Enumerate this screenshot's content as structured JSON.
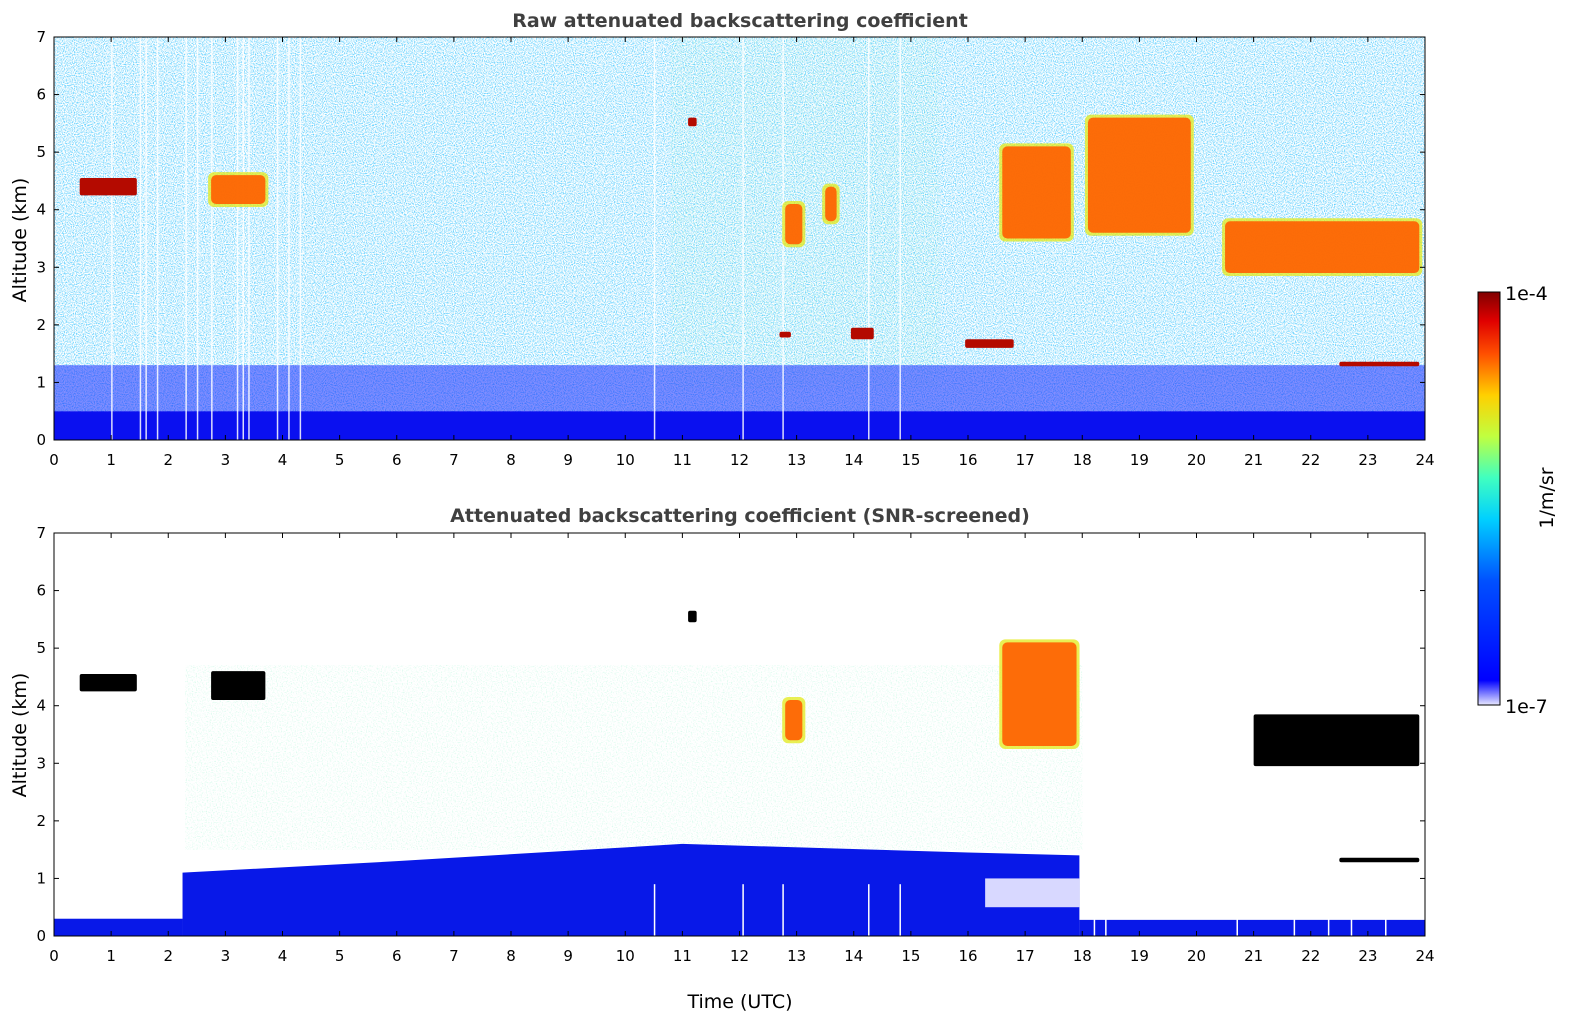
{
  "chart_data": [
    {
      "type": "heatmap",
      "title": "Raw attenuated backscattering coefficient",
      "xlabel": "",
      "ylabel": "Altitude (km)",
      "xlim": [
        0,
        24
      ],
      "ylim": [
        0,
        7
      ],
      "xticks": [
        "0",
        "1",
        "2",
        "3",
        "4",
        "5",
        "6",
        "7",
        "8",
        "9",
        "10",
        "11",
        "12",
        "13",
        "14",
        "15",
        "16",
        "17",
        "18",
        "19",
        "20",
        "21",
        "22",
        "23",
        "24"
      ],
      "yticks": [
        "0",
        "1",
        "2",
        "3",
        "4",
        "5",
        "6",
        "7"
      ],
      "features": [
        {
          "kind": "cloud",
          "t0": 0.45,
          "t1": 1.45,
          "alt0": 4.25,
          "alt1": 4.55
        },
        {
          "kind": "cloud",
          "t0": 2.75,
          "t1": 3.7,
          "alt0": 4.1,
          "alt1": 4.6
        },
        {
          "kind": "cloud",
          "t0": 11.1,
          "t1": 11.25,
          "alt0": 5.45,
          "alt1": 5.6
        },
        {
          "kind": "cloud",
          "t0": 12.8,
          "t1": 13.1,
          "alt0": 3.4,
          "alt1": 4.1
        },
        {
          "kind": "cloud",
          "t0": 13.5,
          "t1": 13.7,
          "alt0": 3.8,
          "alt1": 4.4
        },
        {
          "kind": "cloud",
          "t0": 16.6,
          "t1": 17.8,
          "alt0": 3.5,
          "alt1": 5.1
        },
        {
          "kind": "cloud",
          "t0": 18.1,
          "t1": 19.9,
          "alt0": 3.6,
          "alt1": 5.6
        },
        {
          "kind": "cloud",
          "t0": 20.5,
          "t1": 23.9,
          "alt0": 2.9,
          "alt1": 3.8
        },
        {
          "kind": "cloud",
          "t0": 12.7,
          "t1": 12.9,
          "alt0": 1.78,
          "alt1": 1.88
        },
        {
          "kind": "cloud",
          "t0": 13.95,
          "t1": 14.35,
          "alt0": 1.75,
          "alt1": 1.95
        },
        {
          "kind": "cloud",
          "t0": 15.95,
          "t1": 16.8,
          "alt0": 1.6,
          "alt1": 1.75
        },
        {
          "kind": "cloud",
          "t0": 22.5,
          "t1": 23.9,
          "alt0": 1.28,
          "alt1": 1.36
        }
      ]
    },
    {
      "type": "heatmap",
      "title": "Attenuated backscattering coefficient (SNR-screened)",
      "xlabel": "Time (UTC)",
      "ylabel": "Altitude (km)",
      "xlim": [
        0,
        24
      ],
      "ylim": [
        0,
        7
      ],
      "xticks": [
        "0",
        "1",
        "2",
        "3",
        "4",
        "5",
        "6",
        "7",
        "8",
        "9",
        "10",
        "11",
        "12",
        "13",
        "14",
        "15",
        "16",
        "17",
        "18",
        "19",
        "20",
        "21",
        "22",
        "23",
        "24"
      ],
      "yticks": [
        "0",
        "1",
        "2",
        "3",
        "4",
        "5",
        "6",
        "7"
      ],
      "features": [
        {
          "kind": "saturated",
          "t0": 0.45,
          "t1": 1.45,
          "alt0": 4.25,
          "alt1": 4.55
        },
        {
          "kind": "saturated",
          "t0": 2.75,
          "t1": 3.7,
          "alt0": 4.1,
          "alt1": 4.6
        },
        {
          "kind": "saturated",
          "t0": 11.1,
          "t1": 11.25,
          "alt0": 5.45,
          "alt1": 5.65
        },
        {
          "kind": "saturated",
          "t0": 21.0,
          "t1": 23.9,
          "alt0": 2.95,
          "alt1": 3.85
        },
        {
          "kind": "saturated",
          "t0": 22.5,
          "t1": 23.9,
          "alt0": 1.28,
          "alt1": 1.36
        },
        {
          "kind": "cloud",
          "t0": 16.6,
          "t1": 17.9,
          "alt0": 3.3,
          "alt1": 5.1
        },
        {
          "kind": "cloud",
          "t0": 12.8,
          "t1": 13.1,
          "alt0": 3.4,
          "alt1": 4.1
        }
      ]
    }
  ],
  "colorbar": {
    "label": "1/m/sr",
    "max_label": "1e-4",
    "min_label": "1e-7",
    "colormap": "jet"
  }
}
